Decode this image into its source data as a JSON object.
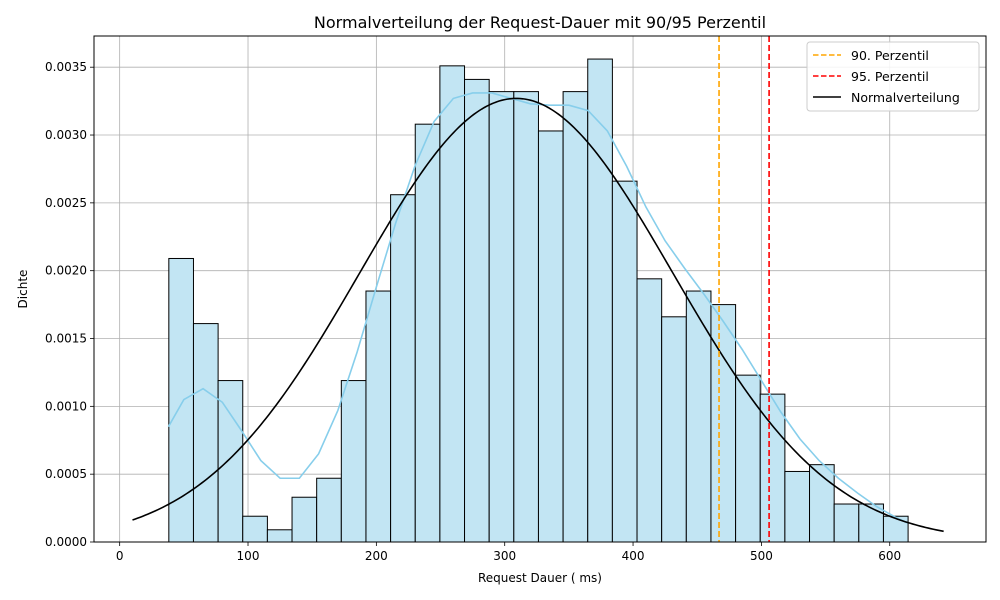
{
  "chart_data": {
    "type": "bar",
    "title": "Normalverteilung der Request-Dauer mit 90/95 Perzentil",
    "xlabel": "Request Dauer ( ms)",
    "ylabel": "Dichte",
    "xlim": [
      -20,
      675
    ],
    "ylim": [
      0,
      0.00373
    ],
    "grid": true,
    "legend_position": "top-right",
    "x_ticks": [
      0,
      100,
      200,
      300,
      400,
      500,
      600
    ],
    "x_tick_labels": [
      "0",
      "100",
      "200",
      "300",
      "400",
      "500",
      "600"
    ],
    "y_ticks": [
      0,
      0.0005,
      0.001,
      0.0015,
      0.002,
      0.0025,
      0.003,
      0.0035
    ],
    "y_tick_labels": [
      "0.0000",
      "0.0005",
      "0.0010",
      "0.0015",
      "0.0020",
      "0.0025",
      "0.0030",
      "0.0035"
    ],
    "histogram": {
      "name": "",
      "bin_edges": [
        38.3,
        57.5,
        76.7,
        95.9,
        115.1,
        134.3,
        153.5,
        172.7,
        191.9,
        211.1,
        230.3,
        249.5,
        268.7,
        287.9,
        307.1,
        326.3,
        345.5,
        364.7,
        383.9,
        403.1,
        422.3,
        441.5,
        460.7,
        479.9,
        499.1,
        518.3,
        537.5,
        556.7,
        575.9,
        595.1,
        614.3
      ],
      "values": [
        0.00209,
        0.00161,
        0.00119,
        0.00019,
        9e-05,
        0.00033,
        0.00047,
        0.00119,
        0.00185,
        0.00256,
        0.00308,
        0.00351,
        0.00341,
        0.00332,
        0.00332,
        0.00303,
        0.00332,
        0.00356,
        0.00266,
        0.00194,
        0.00166,
        0.00185,
        0.00175,
        0.00123,
        0.00109,
        0.00052,
        0.00057,
        0.00028,
        0.00028,
        0.00019
      ],
      "fill": "#c2e5f3",
      "edge": "#000000"
    },
    "kde": {
      "name": "",
      "color": "#87ceeb",
      "x": [
        38,
        50,
        65,
        80,
        95,
        110,
        125,
        140,
        155,
        170,
        185,
        200,
        215,
        230,
        245,
        260,
        275,
        290,
        305,
        320,
        335,
        350,
        365,
        380,
        395,
        410,
        425,
        440,
        455,
        470,
        485,
        500,
        515,
        530,
        545,
        560,
        575,
        590,
        605,
        614
      ],
      "y": [
        0.00085,
        0.00105,
        0.00113,
        0.00103,
        0.00082,
        0.0006,
        0.00047,
        0.00047,
        0.00065,
        0.00097,
        0.0014,
        0.00188,
        0.00235,
        0.00277,
        0.0031,
        0.00327,
        0.00331,
        0.00331,
        0.00327,
        0.00323,
        0.00322,
        0.00322,
        0.00318,
        0.00303,
        0.00277,
        0.00247,
        0.00222,
        0.00202,
        0.00183,
        0.00163,
        0.00142,
        0.00119,
        0.00096,
        0.00076,
        0.0006,
        0.00047,
        0.00036,
        0.00026,
        0.00018,
        0.00014
      ]
    },
    "series": [
      {
        "name": "90. Perzentil",
        "type": "vline",
        "x": 467,
        "color": "#ffa500",
        "style": "dashed"
      },
      {
        "name": "95. Perzentil",
        "type": "vline",
        "x": 506,
        "color": "#ff0000",
        "style": "dashed"
      },
      {
        "name": "Normalverteilung",
        "type": "line",
        "color": "#000000",
        "mean": 309,
        "std": 122,
        "x_start": 10,
        "x_end": 643
      }
    ]
  }
}
